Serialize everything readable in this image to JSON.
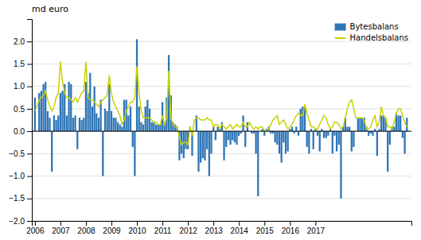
{
  "chart_data": {
    "type": "bar",
    "ylabel": "md euro",
    "x": [
      2006,
      2006.0833333333333,
      2006.1666666666667,
      2006.25,
      2006.3333333333333,
      2006.4166666666667,
      2006.5,
      2006.5833333333333,
      2006.6666666666667,
      2006.75,
      2006.8333333333333,
      2006.9166666666667,
      2007,
      2007.0833333333333,
      2007.1666666666667,
      2007.25,
      2007.3333333333333,
      2007.4166666666667,
      2007.5,
      2007.5833333333333,
      2007.6666666666667,
      2007.75,
      2007.8333333333333,
      2007.9166666666667,
      2008,
      2008.0833333333333,
      2008.1666666666667,
      2008.25,
      2008.3333333333333,
      2008.4166666666667,
      2008.5,
      2008.5833333333333,
      2008.6666666666667,
      2008.75,
      2008.8333333333333,
      2008.9166666666667,
      2009,
      2009.0833333333333,
      2009.1666666666667,
      2009.25,
      2009.3333333333333,
      2009.4166666666667,
      2009.5,
      2009.5833333333333,
      2009.6666666666667,
      2009.75,
      2009.8333333333333,
      2009.9166666666667,
      2010,
      2010.0833333333333,
      2010.1666666666667,
      2010.25,
      2010.3333333333333,
      2010.4166666666667,
      2010.5,
      2010.5833333333333,
      2010.6666666666667,
      2010.75,
      2010.8333333333333,
      2010.9166666666667,
      2011,
      2011.0833333333333,
      2011.1666666666667,
      2011.25,
      2011.3333333333333,
      2011.4166666666667,
      2011.5,
      2011.5833333333333,
      2011.6666666666667,
      2011.75,
      2011.8333333333333,
      2011.9166666666667,
      2012,
      2012.0833333333333,
      2012.1666666666667,
      2012.25,
      2012.3333333333333,
      2012.4166666666667,
      2012.5,
      2012.5833333333333,
      2012.6666666666667,
      2012.75,
      2012.8333333333333,
      2012.9166666666667,
      2013,
      2013.0833333333333,
      2013.1666666666667,
      2013.25,
      2013.3333333333333,
      2013.4166666666667,
      2013.5,
      2013.5833333333333,
      2013.6666666666667,
      2013.75,
      2013.8333333333333,
      2013.9166666666667,
      2014,
      2014.0833333333333,
      2014.1666666666667,
      2014.25,
      2014.3333333333333,
      2014.4166666666667,
      2014.5,
      2014.5833333333333,
      2014.6666666666667,
      2014.75,
      2014.8333333333333,
      2014.9166666666667,
      2015,
      2015.0833333333333,
      2015.1666666666667,
      2015.25,
      2015.3333333333333,
      2015.4166666666667,
      2015.5,
      2015.5833333333333,
      2015.6666666666667,
      2015.75,
      2015.8333333333333,
      2015.9166666666667,
      2016,
      2016.0833333333333,
      2016.1666666666667,
      2016.25,
      2016.3333333333333,
      2016.4166666666667,
      2016.5,
      2016.5833333333333,
      2016.6666666666667,
      2016.75,
      2016.8333333333333,
      2016.9166666666667,
      2017,
      2017.0833333333333,
      2017.1666666666667,
      2017.25,
      2017.3333333333333,
      2017.4166666666667,
      2017.5,
      2017.5833333333333,
      2017.6666666666667,
      2017.75,
      2017.8333333333333,
      2017.9166666666667,
      2018,
      2018.0833333333333,
      2018.1666666666667,
      2018.25,
      2018.3333333333333,
      2018.4166666666667,
      2018.5,
      2018.5833333333333,
      2018.6666666666667,
      2018.75,
      2018.8333333333333,
      2018.9166666666667,
      2019,
      2019.0833333333333,
      2019.1666666666667,
      2019.25,
      2019.3333333333333,
      2019.4166666666667,
      2019.5,
      2019.5833333333333,
      2019.6666666666667,
      2019.75,
      2019.8333333333333,
      2019.9166666666667,
      2020,
      2020.0833333333333,
      2020.1666666666667,
      2020.25,
      2020.3333333333333,
      2020.4166666666667,
      2020.5,
      2020.5833333333333
    ],
    "series": [
      {
        "name": "Bytesbalans",
        "type": "bar",
        "color": "#2e75b6",
        "values": [
          0.75,
          0.0,
          0.85,
          0.9,
          1.05,
          1.1,
          0.45,
          0.3,
          -0.9,
          0.35,
          0.25,
          0.35,
          0.85,
          0.9,
          1.05,
          0.35,
          1.1,
          1.05,
          0.3,
          0.35,
          -0.4,
          0.3,
          0.25,
          0.3,
          1.1,
          0.85,
          1.3,
          0.55,
          1.0,
          0.4,
          0.3,
          0.7,
          -1.0,
          0.5,
          0.45,
          1.05,
          0.45,
          0.3,
          0.3,
          0.2,
          0.15,
          0.1,
          0.7,
          0.7,
          0.35,
          0.55,
          -0.35,
          -1.0,
          2.05,
          0.55,
          0.2,
          0.15,
          0.55,
          0.7,
          0.5,
          0.2,
          0.2,
          0.15,
          0.15,
          0.15,
          0.65,
          0.2,
          0.75,
          1.7,
          0.8,
          0.2,
          0.15,
          0.1,
          -0.65,
          -0.5,
          -0.6,
          -0.4,
          -0.4,
          0.1,
          -0.55,
          0.0,
          0.35,
          -0.9,
          -0.7,
          -0.6,
          -0.65,
          -0.4,
          -1.0,
          -0.5,
          0.1,
          -0.2,
          0.1,
          0.05,
          0.2,
          -0.65,
          -0.35,
          -0.2,
          -0.3,
          -0.2,
          -0.25,
          -0.3,
          -0.1,
          -0.05,
          0.35,
          -0.35,
          0.2,
          0.0,
          -0.05,
          -0.05,
          -0.5,
          -1.45,
          0.0,
          0.05,
          -0.1,
          0.05,
          0.1,
          -0.05,
          -0.05,
          -0.25,
          -0.3,
          -0.5,
          -0.7,
          -0.25,
          -0.5,
          -0.45,
          0.05,
          0.1,
          -0.05,
          0.1,
          -0.1,
          0.5,
          0.55,
          0.55,
          -0.35,
          -0.5,
          0.05,
          -0.4,
          0.05,
          -0.1,
          -0.45,
          0.05,
          -0.15,
          -0.15,
          -0.1,
          0.05,
          -0.5,
          -0.1,
          -0.45,
          -0.3,
          -1.5,
          0.1,
          0.3,
          0.1,
          0.1,
          -0.45,
          -0.35,
          0.0,
          0.3,
          0.3,
          0.3,
          0.3,
          0.1,
          -0.1,
          -0.05,
          -0.1,
          0.05,
          -0.55,
          0.05,
          0.35,
          0.35,
          0.3,
          -0.9,
          -0.3,
          0.1,
          0.1,
          0.4,
          0.35,
          0.35,
          -0.15,
          -0.5,
          0.3
        ]
      },
      {
        "name": "Handelsbalans",
        "type": "line",
        "color": "#c8d400",
        "values": [
          0.45,
          0.55,
          0.7,
          0.75,
          0.8,
          0.9,
          0.7,
          0.55,
          0.45,
          0.55,
          0.75,
          0.85,
          1.55,
          1.1,
          0.85,
          0.75,
          0.75,
          0.7,
          0.65,
          0.75,
          0.65,
          0.75,
          0.85,
          0.9,
          1.55,
          0.75,
          0.7,
          0.7,
          0.65,
          0.6,
          0.55,
          0.65,
          0.7,
          0.75,
          0.8,
          1.25,
          0.85,
          0.65,
          0.55,
          0.45,
          0.35,
          0.15,
          0.25,
          0.45,
          0.55,
          0.65,
          0.65,
          0.75,
          1.45,
          0.85,
          0.45,
          0.3,
          0.3,
          0.3,
          0.3,
          0.25,
          0.2,
          0.2,
          0.15,
          0.15,
          0.35,
          0.15,
          0.3,
          1.35,
          0.3,
          0.15,
          0.1,
          0.1,
          -0.15,
          -0.3,
          -0.25,
          -0.25,
          -0.3,
          0.1,
          -0.1,
          0.25,
          0.3,
          0.3,
          0.25,
          0.25,
          0.25,
          0.3,
          0.25,
          0.25,
          0.1,
          0.15,
          0.15,
          0.05,
          0.15,
          0.1,
          0.05,
          0.1,
          0.15,
          0.05,
          0.1,
          0.15,
          0.1,
          0.1,
          0.2,
          0.1,
          0.1,
          0.2,
          0.1,
          0.05,
          0.1,
          0.05,
          0.1,
          0.1,
          0.0,
          0.0,
          0.05,
          0.15,
          0.25,
          0.3,
          0.35,
          0.15,
          0.2,
          0.25,
          0.15,
          0.05,
          0.1,
          0.15,
          0.25,
          0.35,
          0.4,
          0.35,
          0.35,
          0.6,
          0.4,
          0.25,
          0.1,
          0.1,
          0.05,
          0.05,
          0.15,
          0.25,
          0.35,
          0.3,
          0.15,
          0.05,
          0.1,
          0.2,
          0.2,
          0.15,
          0.05,
          0.1,
          0.3,
          0.5,
          0.65,
          0.7,
          0.5,
          0.3,
          0.3,
          0.3,
          0.3,
          0.25,
          0.05,
          0.05,
          0.1,
          0.25,
          0.35,
          0.1,
          0.2,
          0.55,
          0.35,
          0.3,
          0.1,
          0.1,
          0.05,
          0.2,
          0.4,
          0.5,
          0.5,
          0.35,
          0.2,
          0.1
        ]
      }
    ],
    "xlim": [
      2005.88,
      2020.7633333333333
    ],
    "xticks": [
      2006,
      2007,
      2008,
      2009,
      2010,
      2011,
      2012,
      2013,
      2014,
      2015,
      2016,
      2017
    ],
    "ylim": [
      -2.0,
      2.5
    ],
    "yticks": [
      {
        "value": -2.0,
        "label": "−2.0"
      },
      {
        "value": -1.5,
        "label": "−1.5"
      },
      {
        "value": -1.0,
        "label": "−1.0"
      },
      {
        "value": -0.5,
        "label": "−0.5"
      },
      {
        "value": 0.0,
        "label": "0.0"
      },
      {
        "value": 0.5,
        "label": "0.5"
      },
      {
        "value": 1.0,
        "label": "1.0"
      },
      {
        "value": 1.5,
        "label": "1.5"
      },
      {
        "value": 2.0,
        "label": "2.0"
      }
    ],
    "grid": true,
    "legend": "upper right"
  }
}
